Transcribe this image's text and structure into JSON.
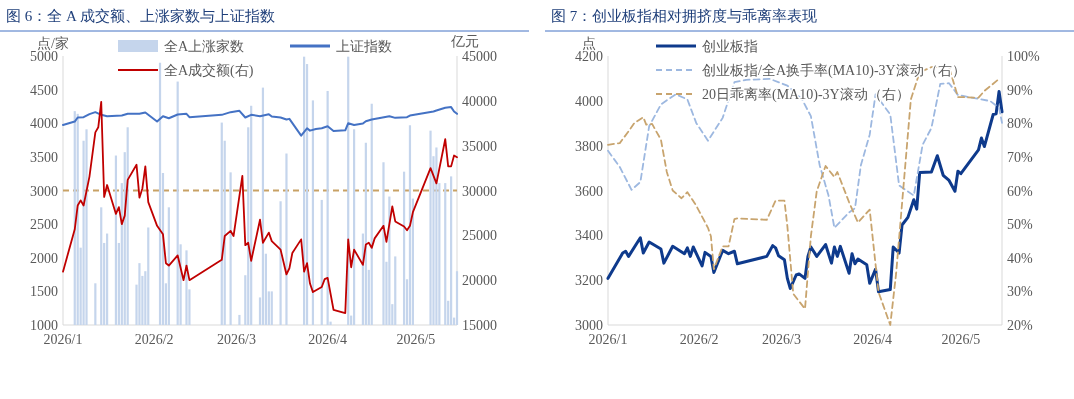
{
  "chart_data": [
    {
      "type": "line",
      "title": "图 6：全 A 成交额、上涨家数与上证指数",
      "ylabel": "点/家",
      "y2label": "亿元",
      "legend": "top",
      "grid": false,
      "xlim": [
        "2026-01-01",
        "2026-05-15"
      ],
      "xticks": [
        {
          "value": "2026-01-01",
          "label": "2026/1"
        },
        {
          "value": "2026-02-01",
          "label": "2026/2"
        },
        {
          "value": "2026-03-01",
          "label": "2026/3"
        },
        {
          "value": "2026-04-01",
          "label": "2026/4"
        },
        {
          "value": "2026-05-01",
          "label": "2026/5"
        }
      ],
      "ylim": [
        1000,
        5000
      ],
      "yticks": [
        1000,
        1500,
        2000,
        2500,
        3000,
        3500,
        4000,
        4500,
        5000
      ],
      "y2lim": [
        15000,
        45000
      ],
      "y2ticks": [
        15000,
        20000,
        25000,
        30000,
        35000,
        40000,
        45000
      ],
      "ref_lines": [
        {
          "axis": "y",
          "value": 3000,
          "color": "#c8a165",
          "line_style": "dashed"
        }
      ],
      "series": [
        {
          "type": "bar",
          "name": "全A上涨家数",
          "color": "#c5d5ec",
          "x": [
            "2026-01-05",
            "2026-01-06",
            "2026-01-07",
            "2026-01-08",
            "2026-01-09",
            "2026-01-12",
            "2026-01-14",
            "2026-01-15",
            "2026-01-16",
            "2026-01-19",
            "2026-01-20",
            "2026-01-21",
            "2026-01-22",
            "2026-01-23",
            "2026-01-26",
            "2026-01-27",
            "2026-01-28",
            "2026-01-29",
            "2026-01-30",
            "2026-02-03",
            "2026-02-04",
            "2026-02-05",
            "2026-02-06",
            "2026-02-09",
            "2026-02-10",
            "2026-02-12",
            "2026-02-13",
            "2026-02-24",
            "2026-02-25",
            "2026-02-27",
            "2026-03-02",
            "2026-03-04",
            "2026-03-05",
            "2026-03-06",
            "2026-03-09",
            "2026-03-10",
            "2026-03-11",
            "2026-03-12",
            "2026-03-13",
            "2026-03-16",
            "2026-03-18",
            "2026-03-24",
            "2026-03-25",
            "2026-03-27",
            "2026-03-30",
            "2026-04-01",
            "2026-04-02",
            "2026-04-08",
            "2026-04-09",
            "2026-04-10",
            "2026-04-13",
            "2026-04-14",
            "2026-04-15",
            "2026-04-16",
            "2026-04-20",
            "2026-04-21",
            "2026-04-22",
            "2026-04-23",
            "2026-04-24",
            "2026-04-27",
            "2026-04-28",
            "2026-04-29",
            "2026-04-30",
            "2026-05-06",
            "2026-05-07",
            "2026-05-08",
            "2026-05-09",
            "2026-05-11",
            "2026-05-12",
            "2026-05-13",
            "2026-05-14",
            "2026-05-15"
          ],
          "values": [
            4180,
            4140,
            2150,
            3740,
            3910,
            1620,
            2750,
            2220,
            2360,
            3520,
            2220,
            3110,
            3570,
            3940,
            1600,
            1920,
            1730,
            1800,
            2450,
            4900,
            3260,
            1620,
            2750,
            4620,
            2200,
            2110,
            1530,
            4010,
            3740,
            3270,
            1150,
            1740,
            3940,
            4260,
            1410,
            4530,
            2060,
            1500,
            1500,
            2840,
            3550,
            4990,
            4880,
            4340,
            2860,
            4480,
            1050,
            4990,
            1140,
            3910,
            2360,
            3710,
            1820,
            4290,
            3420,
            1940,
            2910,
            1310,
            2020,
            3280,
            1680,
            3970,
            2880,
            3890,
            3510,
            3640,
            3110,
            3110,
            1360,
            3210,
            1110,
            1800
          ]
        },
        {
          "type": "line",
          "name": "上证指数",
          "color": "#4472c4",
          "x": [
            "2026-01-01",
            "2026-01-05",
            "2026-01-06",
            "2026-01-08",
            "2026-01-10",
            "2026-01-12",
            "2026-01-14",
            "2026-01-16",
            "2026-01-21",
            "2026-01-23",
            "2026-01-27",
            "2026-01-29",
            "2026-02-02",
            "2026-02-04",
            "2026-02-06",
            "2026-02-09",
            "2026-02-12",
            "2026-02-13",
            "2026-02-24",
            "2026-02-27",
            "2026-03-02",
            "2026-03-04",
            "2026-03-06",
            "2026-03-09",
            "2026-03-12",
            "2026-03-13",
            "2026-03-16",
            "2026-03-18",
            "2026-03-19",
            "2026-03-23",
            "2026-03-25",
            "2026-03-26",
            "2026-03-28",
            "2026-03-30",
            "2026-04-01",
            "2026-04-03",
            "2026-04-07",
            "2026-04-08",
            "2026-04-10",
            "2026-04-13",
            "2026-04-14",
            "2026-04-16",
            "2026-04-22",
            "2026-04-24",
            "2026-04-28",
            "2026-04-29",
            "2026-05-07",
            "2026-05-08",
            "2026-05-11",
            "2026-05-13",
            "2026-05-14",
            "2026-05-15"
          ],
          "values": [
            3975,
            4025,
            4085,
            4090,
            4135,
            4165,
            4125,
            4105,
            4115,
            4140,
            4140,
            4160,
            4025,
            4105,
            4075,
            4130,
            4140,
            4090,
            4125,
            4165,
            4185,
            4085,
            4125,
            4105,
            4135,
            4100,
            4085,
            4055,
            4065,
            3815,
            3925,
            3890,
            3915,
            3925,
            3955,
            3885,
            3895,
            4000,
            3975,
            3995,
            4030,
            4055,
            4105,
            4080,
            4090,
            4115,
            4175,
            4190,
            4230,
            4240,
            4175,
            4140
          ]
        },
        {
          "type": "line",
          "name": "全A成交额(右)",
          "color": "#c00000",
          "axis": "y2",
          "x": [
            "2026-01-01",
            "2026-01-05",
            "2026-01-06",
            "2026-01-07",
            "2026-01-08",
            "2026-01-10",
            "2026-01-12",
            "2026-01-13",
            "2026-01-14",
            "2026-01-15",
            "2026-01-16",
            "2026-01-19",
            "2026-01-20",
            "2026-01-21",
            "2026-01-22",
            "2026-01-23",
            "2026-01-26",
            "2026-01-27",
            "2026-01-28",
            "2026-01-29",
            "2026-01-30",
            "2026-02-02",
            "2026-02-04",
            "2026-02-05",
            "2026-02-06",
            "2026-02-09",
            "2026-02-11",
            "2026-02-12",
            "2026-02-13",
            "2026-02-24",
            "2026-02-25",
            "2026-02-27",
            "2026-02-28",
            "2026-03-03",
            "2026-03-04",
            "2026-03-05",
            "2026-03-06",
            "2026-03-09",
            "2026-03-10",
            "2026-03-12",
            "2026-03-13",
            "2026-03-16",
            "2026-03-18",
            "2026-03-19",
            "2026-03-20",
            "2026-03-23",
            "2026-03-24",
            "2026-03-25",
            "2026-03-26",
            "2026-03-27",
            "2026-03-30",
            "2026-03-31",
            "2026-04-01",
            "2026-04-03",
            "2026-04-07",
            "2026-04-08",
            "2026-04-09",
            "2026-04-10",
            "2026-04-13",
            "2026-04-14",
            "2026-04-15",
            "2026-04-16",
            "2026-04-17",
            "2026-04-20",
            "2026-04-21",
            "2026-04-23",
            "2026-04-24",
            "2026-04-27",
            "2026-04-28",
            "2026-04-29",
            "2026-04-30",
            "2026-05-06",
            "2026-05-08",
            "2026-05-11",
            "2026-05-12",
            "2026-05-13",
            "2026-05-14",
            "2026-05-15"
          ],
          "values": [
            20950,
            25680,
            28330,
            28900,
            28330,
            31550,
            36480,
            37050,
            39890,
            29280,
            30610,
            27390,
            28140,
            26250,
            27200,
            31180,
            32880,
            29200,
            30230,
            32690,
            28710,
            26060,
            25110,
            21890,
            21630,
            22760,
            20000,
            21630,
            20000,
            22270,
            24920,
            25490,
            24920,
            31630,
            23900,
            24170,
            22160,
            26740,
            24170,
            25300,
            24350,
            23410,
            20640,
            21330,
            23030,
            24550,
            20950,
            21890,
            19620,
            18670,
            19240,
            20110,
            20260,
            16700,
            16330,
            24550,
            21440,
            23410,
            21700,
            23980,
            24170,
            23600,
            24660,
            26060,
            24280,
            28220,
            26550,
            25980,
            25570,
            26060,
            27580,
            32500,
            30800,
            35720,
            32690,
            32690,
            33900,
            33710
          ]
        }
      ]
    },
    {
      "type": "line",
      "title": "图 7：创业板指相对拥挤度与乖离率表现",
      "ylabel": "点",
      "legend": "top",
      "grid": false,
      "xlim": [
        "2026-01-01",
        "2026-05-15"
      ],
      "xticks": [
        {
          "value": "2026-01-01",
          "label": "2026/1"
        },
        {
          "value": "2026-02-01",
          "label": "2026/2"
        },
        {
          "value": "2026-03-01",
          "label": "2026/3"
        },
        {
          "value": "2026-04-01",
          "label": "2026/4"
        },
        {
          "value": "2026-05-01",
          "label": "2026/5"
        }
      ],
      "ylim": [
        3000,
        4200
      ],
      "yticks": [
        3000,
        3200,
        3400,
        3600,
        3800,
        4000,
        4200
      ],
      "y2lim": [
        20,
        100
      ],
      "y2ticks": [
        {
          "value": 20,
          "label": "20%"
        },
        {
          "value": 30,
          "label": "30%"
        },
        {
          "value": 40,
          "label": "40%"
        },
        {
          "value": 50,
          "label": "50%"
        },
        {
          "value": 60,
          "label": "60%"
        },
        {
          "value": 70,
          "label": "70%"
        },
        {
          "value": 80,
          "label": "80%"
        },
        {
          "value": 90,
          "label": "90%"
        },
        {
          "value": 100,
          "label": "100%"
        }
      ],
      "series": [
        {
          "type": "line",
          "name": "创业板指",
          "color": "#0e3a8c",
          "x": [
            "2026-01-01",
            "2026-01-06",
            "2026-01-07",
            "2026-01-08",
            "2026-01-12",
            "2026-01-13",
            "2026-01-15",
            "2026-01-19",
            "2026-01-20",
            "2026-01-23",
            "2026-01-27",
            "2026-01-28",
            "2026-01-29",
            "2026-01-30",
            "2026-02-02",
            "2026-02-03",
            "2026-02-05",
            "2026-02-06",
            "2026-02-09",
            "2026-02-11",
            "2026-02-13",
            "2026-02-14",
            "2026-02-24",
            "2026-02-26",
            "2026-02-27",
            "2026-02-28",
            "2026-03-02",
            "2026-03-03",
            "2026-03-04",
            "2026-03-06",
            "2026-03-07",
            "2026-03-09",
            "2026-03-10",
            "2026-03-11",
            "2026-03-13",
            "2026-03-16",
            "2026-03-18",
            "2026-03-19",
            "2026-03-20",
            "2026-03-21",
            "2026-03-24",
            "2026-03-25",
            "2026-03-26",
            "2026-03-27",
            "2026-03-30",
            "2026-03-31",
            "2026-04-02",
            "2026-04-03",
            "2026-04-07",
            "2026-04-08",
            "2026-04-10",
            "2026-04-11",
            "2026-04-13",
            "2026-04-15",
            "2026-04-16",
            "2026-04-17",
            "2026-04-21",
            "2026-04-23",
            "2026-04-25",
            "2026-04-27",
            "2026-04-29",
            "2026-04-30",
            "2026-05-01",
            "2026-05-07",
            "2026-05-08",
            "2026-05-09",
            "2026-05-12",
            "2026-05-13",
            "2026-05-14",
            "2026-05-15"
          ],
          "values": [
            3208,
            3321,
            3329,
            3306,
            3389,
            3321,
            3370,
            3339,
            3276,
            3351,
            3318,
            3344,
            3306,
            3348,
            3264,
            3324,
            3306,
            3234,
            3333,
            3318,
            3329,
            3273,
            3306,
            3354,
            3344,
            3309,
            3291,
            3208,
            3163,
            3223,
            3228,
            3208,
            3306,
            3348,
            3306,
            3359,
            3276,
            3348,
            3306,
            3351,
            3231,
            3318,
            3273,
            3294,
            3269,
            3186,
            3249,
            3148,
            3158,
            3348,
            3321,
            3446,
            3480,
            3559,
            3517,
            3680,
            3683,
            3755,
            3668,
            3645,
            3597,
            3686,
            3675,
            3781,
            3834,
            3796,
            3939,
            3942,
            4042,
            3951
          ]
        },
        {
          "type": "line",
          "name": "创业板指/全A换手率(MA10)-3Y滚动（右）",
          "color": "#9db8e0",
          "axis": "y2",
          "line_style": "dashed",
          "x": [
            "2026-01-01",
            "2026-01-05",
            "2026-01-09",
            "2026-01-12",
            "2026-01-15",
            "2026-01-19",
            "2026-01-24",
            "2026-01-28",
            "2026-01-31",
            "2026-02-04",
            "2026-02-09",
            "2026-02-13",
            "2026-02-17",
            "2026-02-25",
            "2026-03-03",
            "2026-03-08",
            "2026-03-11",
            "2026-03-14",
            "2026-03-17",
            "2026-03-19",
            "2026-03-24",
            "2026-03-26",
            "2026-03-28",
            "2026-03-31",
            "2026-04-02",
            "2026-04-07",
            "2026-04-10",
            "2026-04-15",
            "2026-04-18",
            "2026-04-21",
            "2026-04-24",
            "2026-04-27",
            "2026-04-30",
            "2026-05-11",
            "2026-05-14",
            "2026-05-15"
          ],
          "values": [
            71.8,
            67.0,
            60.2,
            62.5,
            79.1,
            85.6,
            88.6,
            87.1,
            80.1,
            74.8,
            81.6,
            92.2,
            92.9,
            93.2,
            91.2,
            87.1,
            82.1,
            67.5,
            58.5,
            48.9,
            53.5,
            54.7,
            67.5,
            76.6,
            88.6,
            82.6,
            61.5,
            58.5,
            73.6,
            78.6,
            91.7,
            91.9,
            88.4,
            86.6,
            84.6,
            80.1
          ]
        },
        {
          "type": "line",
          "name": "20日乖离率(MA10)-3Y滚动（右）",
          "color": "#c8a46e",
          "axis": "y2",
          "line_style": "dashed",
          "x": [
            "2026-01-01",
            "2026-01-05",
            "2026-01-08",
            "2026-01-10",
            "2026-01-13",
            "2026-01-14",
            "2026-01-16",
            "2026-01-19",
            "2026-01-21",
            "2026-01-23",
            "2026-01-26",
            "2026-01-28",
            "2026-01-31",
            "2026-02-04",
            "2026-02-05",
            "2026-02-06",
            "2026-02-09",
            "2026-02-11",
            "2026-02-13",
            "2026-02-14",
            "2026-02-24",
            "2026-02-27",
            "2026-03-02",
            "2026-03-03",
            "2026-03-05",
            "2026-03-09",
            "2026-03-11",
            "2026-03-13",
            "2026-03-16",
            "2026-03-19",
            "2026-03-20",
            "2026-03-24",
            "2026-03-27",
            "2026-03-31",
            "2026-04-03",
            "2026-04-07",
            "2026-04-09",
            "2026-04-14",
            "2026-04-17",
            "2026-04-21",
            "2026-04-27",
            "2026-04-30",
            "2026-05-07",
            "2026-05-09",
            "2026-05-14"
          ],
          "values": [
            73.6,
            74.1,
            77.6,
            80.1,
            81.8,
            79.6,
            79.8,
            75.1,
            65.5,
            60.0,
            57.7,
            59.5,
            55.5,
            48.9,
            46.4,
            36.6,
            43.4,
            43.4,
            51.5,
            51.7,
            51.3,
            57.0,
            57.0,
            49.4,
            29.3,
            24.8,
            46.4,
            59.8,
            67.3,
            64.0,
            65.5,
            56.5,
            50.5,
            54.3,
            29.8,
            20.0,
            35.4,
            87.1,
            95.2,
            96.7,
            96.7,
            87.8,
            87.6,
            89.6,
            93.2
          ]
        }
      ]
    }
  ]
}
